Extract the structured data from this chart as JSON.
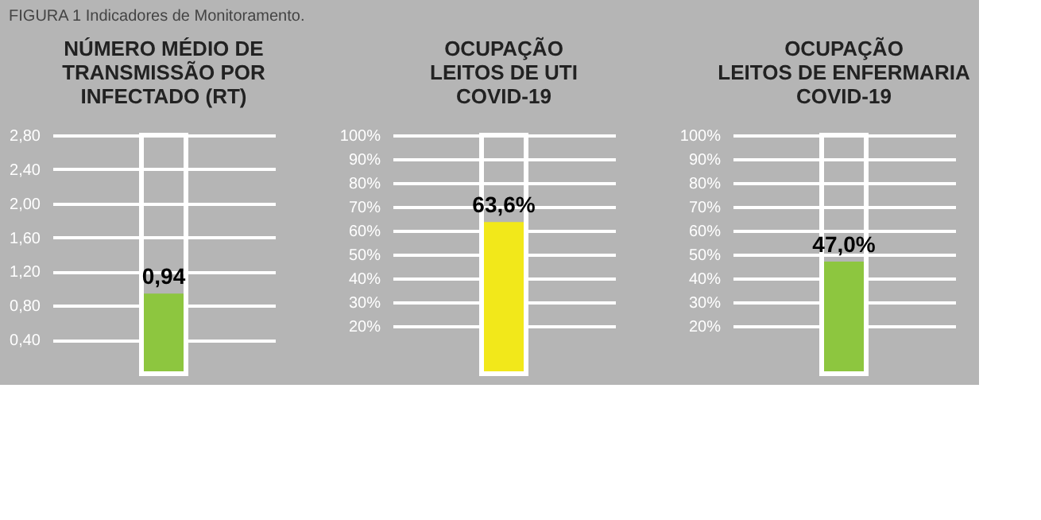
{
  "chart_data": [
    {
      "type": "bar",
      "title": "NÚMERO MÉDIO DE\nTRANSMISSÃO POR\nINFECTADO (RT)",
      "annotations": [
        "FIGURA 1 Indicadores de Monitoramento."
      ],
      "categories": [
        null
      ],
      "values": [
        0.94
      ],
      "color": "#8dc63f",
      "value_labels": [
        "0,94"
      ],
      "ylim": [
        0,
        2.8
      ],
      "yticks": [
        {
          "value": 0.4,
          "label": "0,40"
        },
        {
          "value": 0.8,
          "label": "0,80"
        },
        {
          "value": 1.2,
          "label": "1,20"
        },
        {
          "value": 1.6,
          "label": "1,60"
        },
        {
          "value": 2.0,
          "label": "2,00"
        },
        {
          "value": 2.4,
          "label": "2,40"
        },
        {
          "value": 2.8,
          "label": "2,80"
        }
      ],
      "grid": "y",
      "tick_labels": "y"
    },
    {
      "type": "bar",
      "title": "OCUPAÇÃO\nLEITOS DE UTI\nCOVID-19",
      "categories": [
        null
      ],
      "values": [
        63.6
      ],
      "color": "#f2e81a",
      "value_labels": [
        "63,6%"
      ],
      "ylim": [
        0,
        100
      ],
      "yticks": [
        {
          "value": 20,
          "label": "20%"
        },
        {
          "value": 30,
          "label": "30%"
        },
        {
          "value": 40,
          "label": "40%"
        },
        {
          "value": 50,
          "label": "50%"
        },
        {
          "value": 60,
          "label": "60%"
        },
        {
          "value": 70,
          "label": "70%"
        },
        {
          "value": 80,
          "label": "80%"
        },
        {
          "value": 90,
          "label": "90%"
        },
        {
          "value": 100,
          "label": "100%"
        }
      ],
      "grid": "y",
      "tick_labels": "y"
    },
    {
      "type": "bar",
      "title": "OCUPAÇÃO\nLEITOS DE ENFERMARIA\nCOVID-19",
      "categories": [
        null
      ],
      "values": [
        47.0
      ],
      "color": "#8dc63f",
      "value_labels": [
        "47,0%"
      ],
      "ylim": [
        0,
        100
      ],
      "yticks": [
        {
          "value": 20,
          "label": "20%"
        },
        {
          "value": 30,
          "label": "30%"
        },
        {
          "value": 40,
          "label": "40%"
        },
        {
          "value": 50,
          "label": "50%"
        },
        {
          "value": 60,
          "label": "60%"
        },
        {
          "value": 70,
          "label": "70%"
        },
        {
          "value": 80,
          "label": "80%"
        },
        {
          "value": 90,
          "label": "90%"
        },
        {
          "value": 100,
          "label": "100%"
        }
      ],
      "grid": "y",
      "tick_labels": "y"
    }
  ]
}
